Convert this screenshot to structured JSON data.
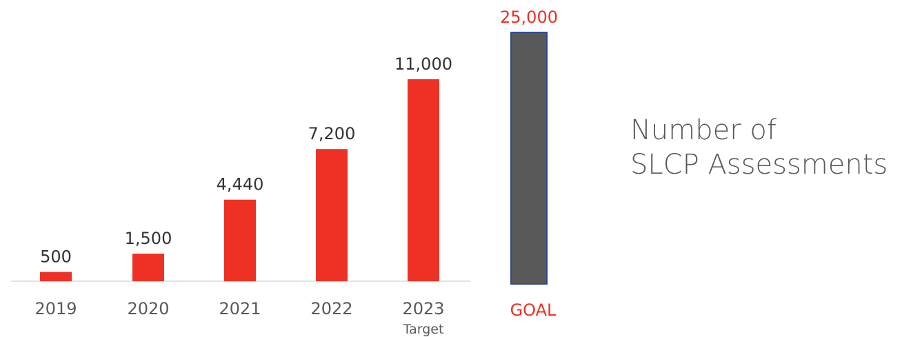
{
  "chart_data": {
    "type": "bar",
    "title": "Number of SLCP Assessments",
    "title_lines": [
      "Number of",
      "SLCP Assessments"
    ],
    "categories": [
      "2019",
      "2020",
      "2021",
      "2022",
      "2023"
    ],
    "values": [
      500,
      1500,
      4440,
      7200,
      11000
    ],
    "value_labels": [
      "500",
      "1,500",
      "4,440",
      "7,200",
      "11,000"
    ],
    "category_sublabels": [
      "",
      "",
      "",
      "",
      "Target"
    ],
    "goal": {
      "label": "GOAL",
      "value": 25000,
      "value_label": "25,000"
    },
    "ylim": [
      0,
      25000
    ],
    "grid": false,
    "legend": "none",
    "colors": {
      "bar": "#ee3124",
      "goal_bar": "#595959",
      "goal_border": "#2f4a8a",
      "goal_text": "#ee3124",
      "label_text": "#333333",
      "tick_text": "#595959",
      "axis": "#d9d9d9"
    }
  }
}
